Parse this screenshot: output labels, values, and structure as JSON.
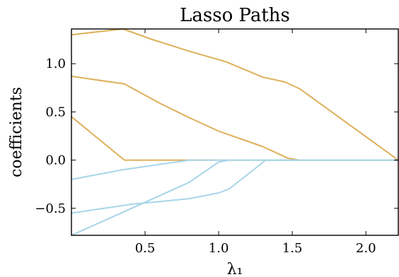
{
  "chart_data": {
    "type": "line",
    "title": "Lasso Paths",
    "xlabel": "λ₁",
    "ylabel": "coefficients",
    "xlim": [
      0.0,
      2.22
    ],
    "ylim": [
      -0.78,
      1.36
    ],
    "xticks": [
      0.5,
      1.0,
      1.5,
      2.0
    ],
    "xtick_labels": [
      "0.5",
      "1.0",
      "1.5",
      "2.0"
    ],
    "yticks": [
      -0.5,
      0.0,
      0.5,
      1.0
    ],
    "ytick_labels": [
      "−0.5",
      "0.0",
      "0.5",
      "1.0"
    ],
    "grid": false,
    "colors": {
      "positive": "#DDB05A",
      "negative": "#A8D5E8"
    },
    "series": [
      {
        "color_key": "positive",
        "x": [
          0.0,
          0.35,
          0.55,
          0.8,
          1.05,
          1.3,
          1.45,
          1.55,
          2.22
        ],
        "y": [
          1.3,
          1.36,
          1.25,
          1.13,
          1.02,
          0.86,
          0.81,
          0.74,
          0.0
        ]
      },
      {
        "color_key": "positive",
        "x": [
          0.0,
          0.36,
          0.6,
          0.8,
          1.0,
          1.3,
          1.47,
          1.55,
          2.22
        ],
        "y": [
          0.87,
          0.79,
          0.59,
          0.44,
          0.3,
          0.14,
          0.02,
          0.0,
          0.0
        ]
      },
      {
        "color_key": "positive",
        "x": [
          0.0,
          0.36,
          0.8,
          2.22
        ],
        "y": [
          0.45,
          0.0,
          0.0,
          0.0
        ]
      },
      {
        "color_key": "negative",
        "x": [
          0.0,
          0.35,
          0.8,
          2.22
        ],
        "y": [
          -0.2,
          -0.1,
          0.0,
          0.0
        ]
      },
      {
        "color_key": "negative",
        "x": [
          0.0,
          0.35,
          0.8,
          1.0,
          1.07,
          2.22
        ],
        "y": [
          -0.78,
          -0.54,
          -0.23,
          -0.02,
          0.0,
          0.0
        ]
      },
      {
        "color_key": "negative",
        "x": [
          0.0,
          0.4,
          0.8,
          1.0,
          1.07,
          1.32,
          2.22
        ],
        "y": [
          -0.55,
          -0.46,
          -0.4,
          -0.34,
          -0.3,
          0.0,
          0.0
        ]
      }
    ]
  }
}
